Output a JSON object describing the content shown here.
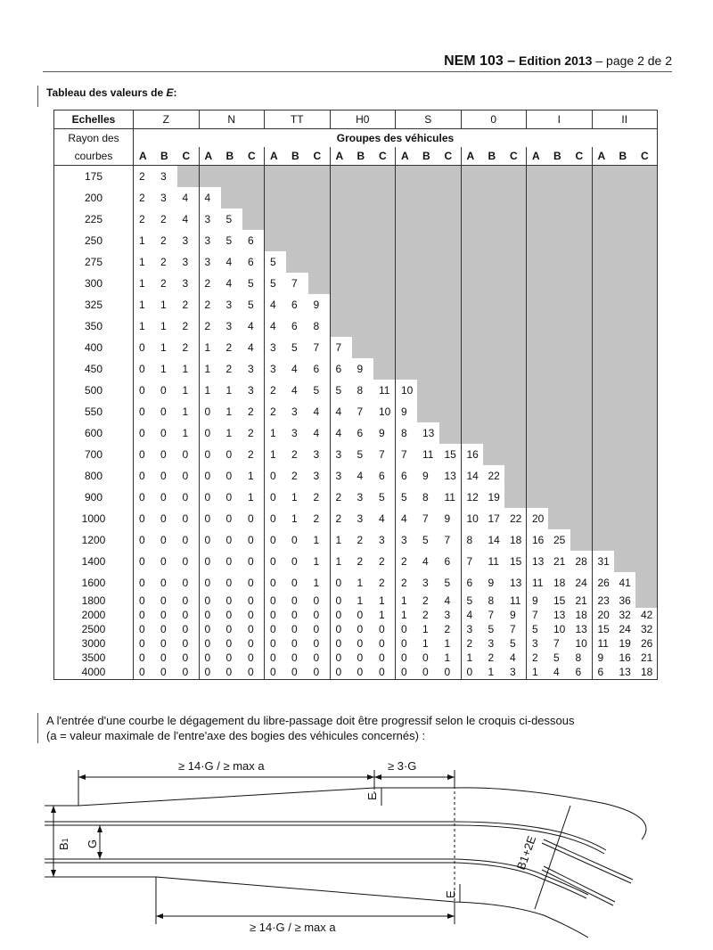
{
  "header": {
    "doc": "NEM 103 –",
    "edition": "Edition 2013",
    "page": " – page 2 de 2"
  },
  "table_title": "Tableau des valeurs de E:",
  "table": {
    "scales_label": "Echelles",
    "scales": [
      "Z",
      "N",
      "TT",
      "H0",
      "S",
      "0",
      "I",
      "II"
    ],
    "radius_label_1": "Rayon des",
    "radius_label_2": "courbes",
    "groups_label": "Groupes des véhicules",
    "subgroups": [
      "A",
      "B",
      "C"
    ],
    "rows": [
      {
        "r": "175",
        "v": [
          "2",
          "3"
        ]
      },
      {
        "r": "200",
        "v": [
          "2",
          "3",
          "4",
          "4"
        ]
      },
      {
        "r": "225",
        "v": [
          "2",
          "2",
          "4",
          "3",
          "5"
        ]
      },
      {
        "r": "250",
        "v": [
          "1",
          "2",
          "3",
          "3",
          "5",
          "6"
        ]
      },
      {
        "r": "275",
        "v": [
          "1",
          "2",
          "3",
          "3",
          "4",
          "6",
          "5"
        ]
      },
      {
        "r": "300",
        "v": [
          "1",
          "2",
          "3",
          "2",
          "4",
          "5",
          "5",
          "7"
        ]
      },
      {
        "r": "325",
        "v": [
          "1",
          "1",
          "2",
          "2",
          "3",
          "5",
          "4",
          "6",
          "9"
        ]
      },
      {
        "r": "350",
        "v": [
          "1",
          "1",
          "2",
          "2",
          "3",
          "4",
          "4",
          "6",
          "8"
        ]
      },
      {
        "r": "400",
        "v": [
          "0",
          "1",
          "2",
          "1",
          "2",
          "4",
          "3",
          "5",
          "7",
          "7"
        ]
      },
      {
        "r": "450",
        "v": [
          "0",
          "1",
          "1",
          "1",
          "2",
          "3",
          "3",
          "4",
          "6",
          "6",
          "9"
        ]
      },
      {
        "r": "500",
        "v": [
          "0",
          "0",
          "1",
          "1",
          "1",
          "3",
          "2",
          "4",
          "5",
          "5",
          "8",
          "11",
          "10"
        ]
      },
      {
        "r": "550",
        "v": [
          "0",
          "0",
          "1",
          "0",
          "1",
          "2",
          "2",
          "3",
          "4",
          "4",
          "7",
          "10",
          "9"
        ]
      },
      {
        "r": "600",
        "v": [
          "0",
          "0",
          "1",
          "0",
          "1",
          "2",
          "1",
          "3",
          "4",
          "4",
          "6",
          "9",
          "8",
          "13"
        ]
      },
      {
        "r": "700",
        "v": [
          "0",
          "0",
          "0",
          "0",
          "0",
          "2",
          "1",
          "2",
          "3",
          "3",
          "5",
          "7",
          "7",
          "11",
          "15",
          "16"
        ]
      },
      {
        "r": "800",
        "v": [
          "0",
          "0",
          "0",
          "0",
          "0",
          "1",
          "0",
          "2",
          "3",
          "3",
          "4",
          "6",
          "6",
          "9",
          "13",
          "14",
          "22"
        ]
      },
      {
        "r": "900",
        "v": [
          "0",
          "0",
          "0",
          "0",
          "0",
          "1",
          "0",
          "1",
          "2",
          "2",
          "3",
          "5",
          "5",
          "8",
          "11",
          "12",
          "19"
        ]
      },
      {
        "r": "1000",
        "v": [
          "0",
          "0",
          "0",
          "0",
          "0",
          "0",
          "0",
          "1",
          "2",
          "2",
          "3",
          "4",
          "4",
          "7",
          "9",
          "10",
          "17",
          "22",
          "20"
        ]
      },
      {
        "r": "1200",
        "v": [
          "0",
          "0",
          "0",
          "0",
          "0",
          "0",
          "0",
          "0",
          "1",
          "1",
          "2",
          "3",
          "3",
          "5",
          "7",
          "8",
          "14",
          "18",
          "16",
          "25"
        ]
      },
      {
        "r": "1400",
        "v": [
          "0",
          "0",
          "0",
          "0",
          "0",
          "0",
          "0",
          "0",
          "1",
          "1",
          "2",
          "2",
          "2",
          "4",
          "6",
          "7",
          "11",
          "15",
          "13",
          "21",
          "28",
          "31"
        ]
      },
      {
        "r": "1600",
        "v": [
          "0",
          "0",
          "0",
          "0",
          "0",
          "0",
          "0",
          "0",
          "1",
          "0",
          "1",
          "2",
          "2",
          "3",
          "5",
          "6",
          "9",
          "13",
          "11",
          "18",
          "24",
          "26",
          "41"
        ]
      },
      {
        "r": "1800",
        "v": [
          "0",
          "0",
          "0",
          "0",
          "0",
          "0",
          "0",
          "0",
          "0",
          "0",
          "1",
          "1",
          "1",
          "2",
          "4",
          "5",
          "8",
          "11",
          "9",
          "15",
          "21",
          "23",
          "36"
        ]
      },
      {
        "r": "2000",
        "v": [
          "0",
          "0",
          "0",
          "0",
          "0",
          "0",
          "0",
          "0",
          "0",
          "0",
          "0",
          "1",
          "1",
          "2",
          "3",
          "4",
          "7",
          "9",
          "7",
          "13",
          "18",
          "20",
          "32",
          "42"
        ]
      },
      {
        "r": "2500",
        "v": [
          "0",
          "0",
          "0",
          "0",
          "0",
          "0",
          "0",
          "0",
          "0",
          "0",
          "0",
          "0",
          "0",
          "1",
          "2",
          "3",
          "5",
          "7",
          "5",
          "10",
          "13",
          "15",
          "24",
          "32"
        ]
      },
      {
        "r": "3000",
        "v": [
          "0",
          "0",
          "0",
          "0",
          "0",
          "0",
          "0",
          "0",
          "0",
          "0",
          "0",
          "0",
          "0",
          "1",
          "1",
          "2",
          "3",
          "5",
          "3",
          "7",
          "10",
          "11",
          "19",
          "26"
        ]
      },
      {
        "r": "3500",
        "v": [
          "0",
          "0",
          "0",
          "0",
          "0",
          "0",
          "0",
          "0",
          "0",
          "0",
          "0",
          "0",
          "0",
          "0",
          "1",
          "1",
          "2",
          "4",
          "2",
          "5",
          "8",
          "9",
          "16",
          "21"
        ]
      },
      {
        "r": "4000",
        "v": [
          "0",
          "0",
          "0",
          "0",
          "0",
          "0",
          "0",
          "0",
          "0",
          "0",
          "0",
          "0",
          "0",
          "0",
          "0",
          "0",
          "1",
          "3",
          "1",
          "4",
          "6",
          "6",
          "13",
          "18"
        ]
      }
    ]
  },
  "note": {
    "line1": "A l'entrée d'une courbe le dégagement du libre-passage doit être progressif selon le croquis ci-dessous",
    "line2": "(a =  valeur maximale de l'entre'axe des bogies des véhicules concernés) :"
  },
  "diagram": {
    "top_dim": "≥ 14·G / ≥ max a",
    "right_dim": "≥ 3·G",
    "bottom_dim": "≥ 14·G / ≥ max a",
    "e_label": "E",
    "b1_label": "B",
    "b1_sub": "1",
    "g_label": "G",
    "curve_label": "B1+2E"
  }
}
